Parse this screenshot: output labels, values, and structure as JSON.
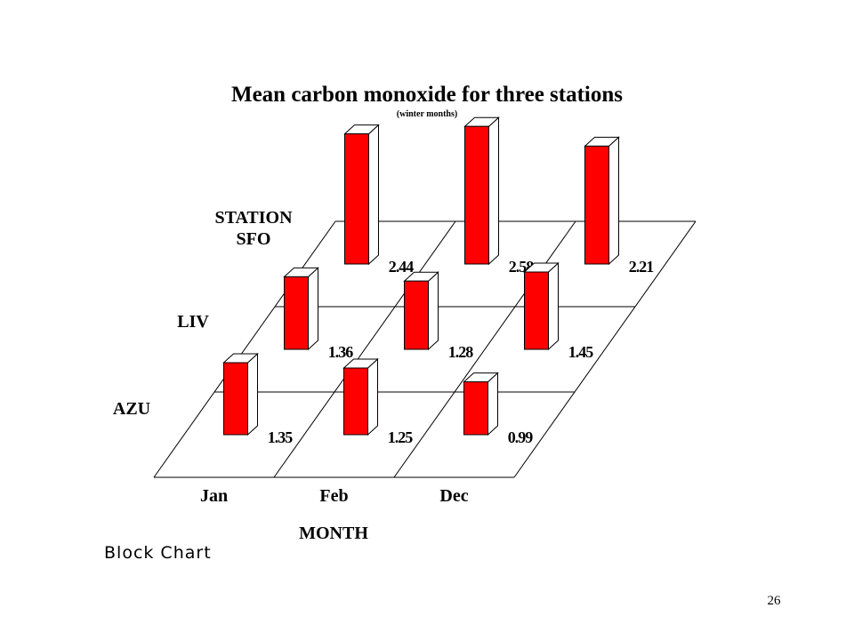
{
  "chart_data": {
    "type": "bar",
    "chart_style": "3d-block",
    "title": "Mean carbon monoxide for three stations",
    "subtitle": "(winter months)",
    "xlabel": "MONTH",
    "ylabel": "STATION",
    "categories": [
      "Jan",
      "Feb",
      "Dec"
    ],
    "series": [
      {
        "name": "AZU",
        "values": [
          1.35,
          1.25,
          0.99
        ]
      },
      {
        "name": "LIV",
        "values": [
          1.36,
          1.28,
          1.45
        ]
      },
      {
        "name": "SFO",
        "values": [
          2.44,
          2.58,
          2.21
        ]
      }
    ],
    "value_labels": [
      [
        "1.35",
        "1.25",
        "0.99"
      ],
      [
        "1.36",
        "1.28",
        "1.45"
      ],
      [
        "2.44",
        "2.58",
        "2.21"
      ]
    ],
    "bar_color": "#ff0000"
  },
  "caption": "Block Chart",
  "page_number": "26"
}
